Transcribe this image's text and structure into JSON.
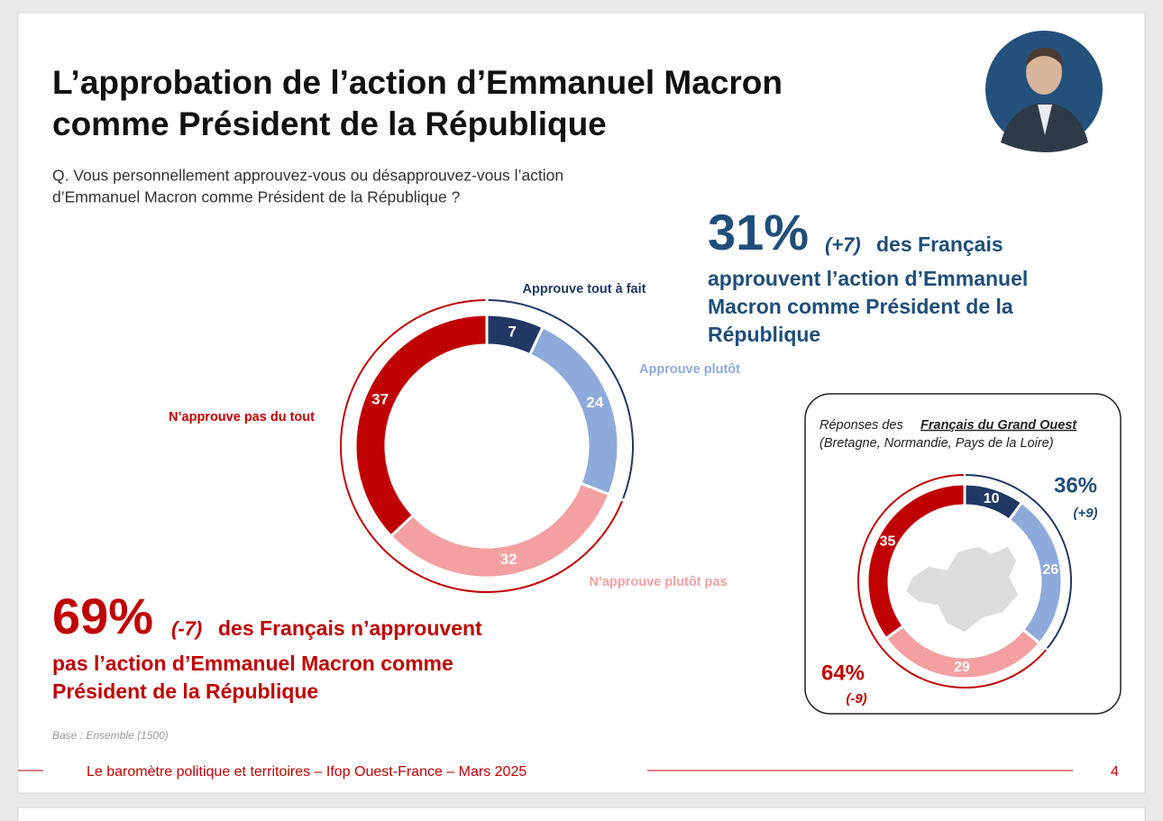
{
  "title_lines": [
    "L’approbation de l’action d’Emmanuel Macron",
    "comme Président de la République"
  ],
  "question_lines": [
    "Q. Vous personnellement approuvez-vous ou désapprouvez-vous l’action",
    "d’Emmanuel Macron comme Président de la République ?"
  ],
  "approve_summary": {
    "figure": "31%",
    "change": "(+7)",
    "lines": [
      "des Français",
      "approuvent l’action d’Emmanuel",
      "Macron comme Président de la",
      "République"
    ]
  },
  "disapprove_summary": {
    "figure": "69%",
    "change": "(-7)",
    "lines": [
      "des Français n’approuvent",
      "pas l’action d’Emmanuel Macron comme",
      "Président de la République"
    ]
  },
  "chart_data": [
    {
      "type": "donut",
      "categories": [
        "Approuve tout à fait",
        "Approuve plutôt",
        "N’approuve plutôt pas",
        "N’approuve pas du tout"
      ],
      "values": [
        7,
        24,
        32,
        37
      ],
      "colors": [
        "#1f3864",
        "#8eaadb",
        "#f4a0a0",
        "#c00000"
      ]
    },
    {
      "type": "donut",
      "title": "Réponses des",
      "title_emphasis": "Français du Grand Ouest",
      "subtitle": "(Bretagne, Normandie, Pays de la Loire)",
      "values": [
        10,
        26,
        29,
        35
      ],
      "colors": [
        "#1f3864",
        "#8eaadb",
        "#f4a0a0",
        "#c00000"
      ],
      "annotations": {
        "approve": "36%",
        "approve_change": "(+9)",
        "disapprove": "64%",
        "disapprove_change": "(-9)"
      }
    }
  ],
  "base_note": "Base : Ensemble (1500)",
  "footer": "Le baromètre politique et territoires – Ifop Ouest-France – Mars 2025",
  "page_number": "4"
}
